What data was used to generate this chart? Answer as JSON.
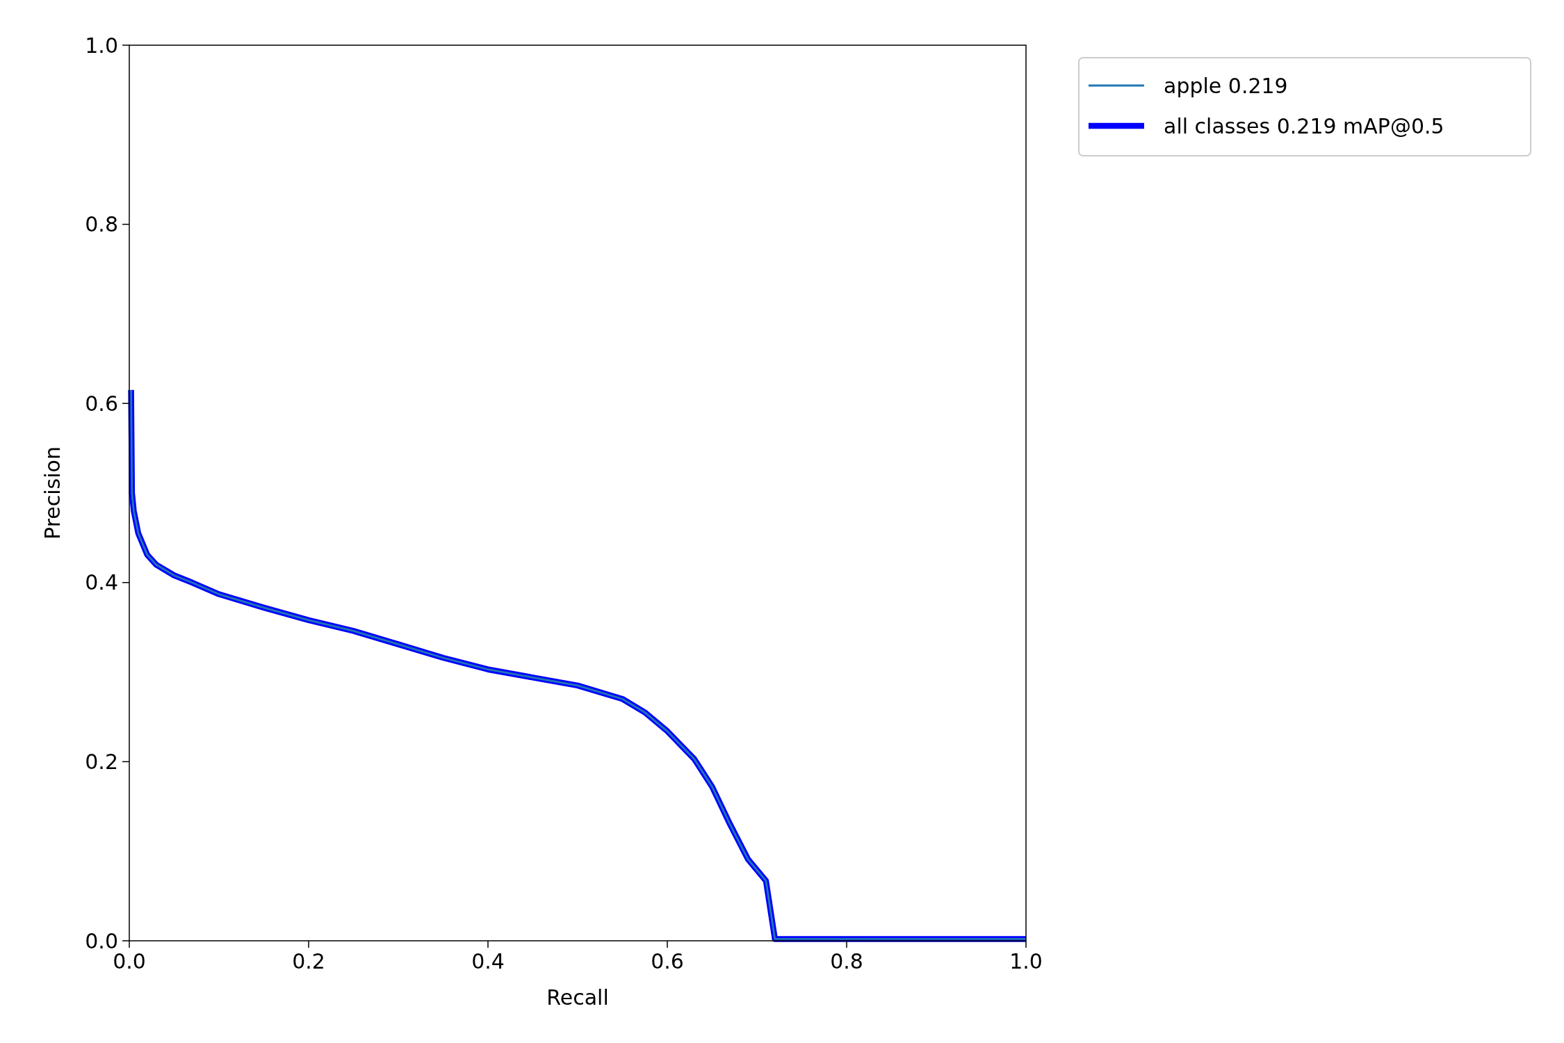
{
  "chart_data": {
    "type": "line",
    "xlabel": "Recall",
    "ylabel": "Precision",
    "x": [
      0.002,
      0.003,
      0.005,
      0.01,
      0.02,
      0.03,
      0.05,
      0.07,
      0.1,
      0.15,
      0.2,
      0.25,
      0.3,
      0.35,
      0.4,
      0.45,
      0.5,
      0.55,
      0.575,
      0.6,
      0.63,
      0.65,
      0.67,
      0.69,
      0.71,
      0.72,
      1.0
    ],
    "series": [
      {
        "name": "apple 0.219",
        "color": "#1f77b4",
        "values": [
          0.615,
          0.5,
          0.48,
          0.455,
          0.431,
          0.42,
          0.408,
          0.4,
          0.387,
          0.372,
          0.358,
          0.346,
          0.331,
          0.316,
          0.303,
          0.294,
          0.285,
          0.27,
          0.255,
          0.234,
          0.203,
          0.172,
          0.13,
          0.091,
          0.067,
          0.002,
          0.002
        ]
      },
      {
        "name": "all classes 0.219 mAP@0.5",
        "color": "#0000ff",
        "values": [
          0.615,
          0.5,
          0.48,
          0.455,
          0.431,
          0.42,
          0.408,
          0.4,
          0.387,
          0.372,
          0.358,
          0.346,
          0.331,
          0.316,
          0.303,
          0.294,
          0.285,
          0.27,
          0.255,
          0.234,
          0.203,
          0.172,
          0.13,
          0.091,
          0.067,
          0.002,
          0.002
        ]
      }
    ],
    "xlim": [
      0,
      1
    ],
    "ylim": [
      0,
      1
    ],
    "xticks": [
      {
        "value": 0,
        "label": "0.0"
      },
      0.2,
      0.4,
      0.6,
      0.8,
      {
        "value": 1,
        "label": "1.0"
      }
    ],
    "yticks": [
      {
        "value": 0,
        "label": "0.0"
      },
      0.2,
      0.4,
      0.6,
      0.8,
      {
        "value": 1,
        "label": "1.0"
      }
    ],
    "legend": "top right"
  }
}
